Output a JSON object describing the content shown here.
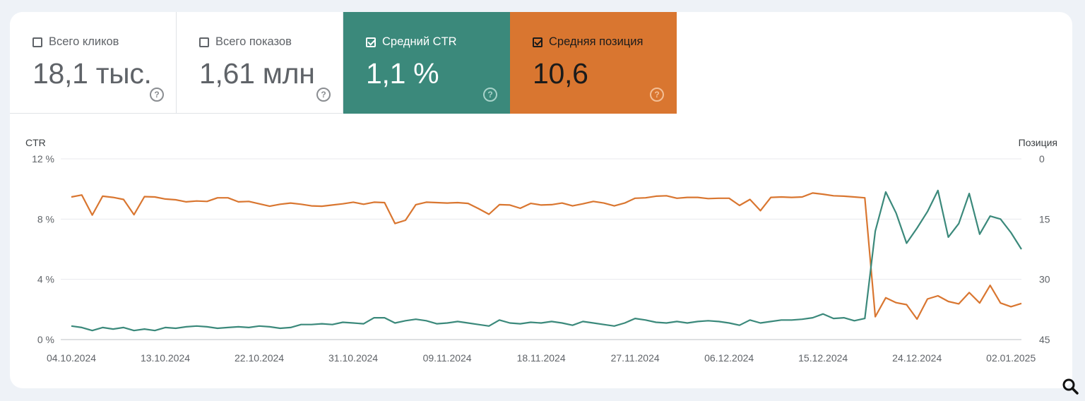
{
  "metrics": {
    "clicks": {
      "label": "Всего кликов",
      "value": "18,1 тыс.",
      "checked": false
    },
    "impressions": {
      "label": "Всего показов",
      "value": "1,61 млн",
      "checked": false
    },
    "ctr": {
      "label": "Средний CTR",
      "value": "1,1 %",
      "checked": true,
      "color": "#3b897b"
    },
    "position": {
      "label": "Средняя позиция",
      "value": "10,6",
      "checked": true,
      "color": "#d97630"
    }
  },
  "help_glyph": "?",
  "chart_data": {
    "type": "line",
    "left_axis": {
      "label": "CTR",
      "range": [
        0,
        12
      ],
      "ticks": [
        "0 %",
        "4 %",
        "8 %",
        "12 %"
      ]
    },
    "right_axis": {
      "label": "Позиция",
      "range": [
        0,
        45
      ],
      "inverted": true,
      "ticks": [
        "0",
        "15",
        "30",
        "45"
      ]
    },
    "x_tick_labels": [
      "04.10.2024",
      "13.10.2024",
      "22.10.2024",
      "31.10.2024",
      "09.11.2024",
      "18.11.2024",
      "27.11.2024",
      "06.12.2024",
      "15.12.2024",
      "24.12.2024",
      "02.01.2025"
    ],
    "grid": true,
    "series": [
      {
        "axis": "left",
        "color": "#3b897b",
        "values": [
          0.9,
          0.8,
          0.6,
          0.8,
          0.7,
          0.8,
          0.6,
          0.7,
          0.6,
          0.8,
          0.75,
          0.85,
          0.9,
          0.85,
          0.75,
          0.8,
          0.85,
          0.8,
          0.9,
          0.85,
          0.75,
          0.8,
          1.0,
          1.0,
          1.05,
          1.0,
          1.15,
          1.1,
          1.05,
          1.45,
          1.45,
          1.1,
          1.25,
          1.35,
          1.25,
          1.05,
          1.1,
          1.2,
          1.1,
          1.0,
          0.9,
          1.3,
          1.1,
          1.05,
          1.15,
          1.1,
          1.2,
          1.1,
          0.95,
          1.2,
          1.1,
          1.0,
          0.9,
          1.1,
          1.4,
          1.3,
          1.15,
          1.1,
          1.2,
          1.1,
          1.2,
          1.25,
          1.2,
          1.1,
          0.95,
          1.3,
          1.1,
          1.2,
          1.3,
          1.3,
          1.35,
          1.45,
          1.7,
          1.4,
          1.45,
          1.25,
          1.4,
          7.2,
          9.8,
          8.4,
          6.4,
          7.4,
          8.5,
          9.9,
          6.8,
          7.7,
          9.7,
          7.0,
          8.2,
          8.0,
          7.1,
          6.0
        ]
      },
      {
        "axis": "right",
        "color": "#d97630",
        "values": [
          9.5,
          9.0,
          14.0,
          9.3,
          9.6,
          10.1,
          13.9,
          9.4,
          9.5,
          10.0,
          10.2,
          10.7,
          10.5,
          10.6,
          9.7,
          9.7,
          10.7,
          10.6,
          11.2,
          11.8,
          11.3,
          11.0,
          11.3,
          11.7,
          11.8,
          11.5,
          11.2,
          10.8,
          11.3,
          10.8,
          10.9,
          16.1,
          15.3,
          11.4,
          10.8,
          10.9,
          11.0,
          10.9,
          11.1,
          12.4,
          13.8,
          11.4,
          11.5,
          12.3,
          11.1,
          11.5,
          11.4,
          11.0,
          11.7,
          11.2,
          10.6,
          11.0,
          11.7,
          11.0,
          9.8,
          9.7,
          9.3,
          9.2,
          9.8,
          9.6,
          9.6,
          9.9,
          9.8,
          9.8,
          11.6,
          10.1,
          12.9,
          9.6,
          9.5,
          9.6,
          9.5,
          8.5,
          8.8,
          9.2,
          9.3,
          9.5,
          9.7,
          39.3,
          34.6,
          35.8,
          36.3,
          39.9,
          34.9,
          34.1,
          35.5,
          36.1,
          33.3,
          35.9,
          31.5,
          35.9,
          36.8,
          36.0
        ]
      }
    ]
  }
}
